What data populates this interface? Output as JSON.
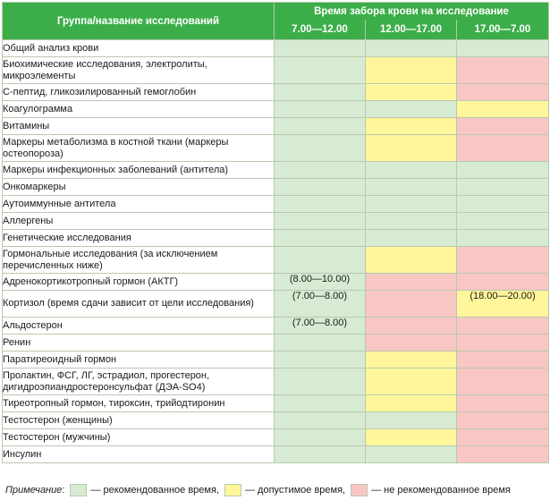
{
  "header": {
    "group_col": "Группа/название исследований",
    "time_col": "Время забора крови на исследование",
    "slots": [
      "7.00—12.00",
      "12.00—17.00",
      "17.00—7.00"
    ]
  },
  "colors": {
    "recommended": "#d7ebd2",
    "acceptable": "#fff59b",
    "not_recommended": "#f8c7c3",
    "header": "#3cae49"
  },
  "rows": [
    {
      "name": "Общий анализ крови",
      "cells": [
        {
          "c": "g",
          "t": ""
        },
        {
          "c": "g",
          "t": ""
        },
        {
          "c": "g",
          "t": ""
        }
      ]
    },
    {
      "name": "Биохимические исследования, электролиты, микроэлементы",
      "cells": [
        {
          "c": "g",
          "t": ""
        },
        {
          "c": "y",
          "t": ""
        },
        {
          "c": "p",
          "t": ""
        }
      ]
    },
    {
      "name": "С-пептид, гликозилированный гемоглобин",
      "cells": [
        {
          "c": "g",
          "t": ""
        },
        {
          "c": "y",
          "t": ""
        },
        {
          "c": "p",
          "t": ""
        }
      ]
    },
    {
      "name": "Коагулограмма",
      "cells": [
        {
          "c": "g",
          "t": ""
        },
        {
          "c": "g",
          "t": ""
        },
        {
          "c": "y",
          "t": ""
        }
      ]
    },
    {
      "name": "Витамины",
      "cells": [
        {
          "c": "g",
          "t": ""
        },
        {
          "c": "y",
          "t": ""
        },
        {
          "c": "p",
          "t": ""
        }
      ]
    },
    {
      "name": "Маркеры метаболизма в костной ткани (маркеры остеопороза)",
      "cells": [
        {
          "c": "g",
          "t": ""
        },
        {
          "c": "y",
          "t": ""
        },
        {
          "c": "p",
          "t": ""
        }
      ]
    },
    {
      "name": "Маркеры инфекционных заболеваний (антитела)",
      "cells": [
        {
          "c": "g",
          "t": ""
        },
        {
          "c": "g",
          "t": ""
        },
        {
          "c": "g",
          "t": ""
        }
      ]
    },
    {
      "name": "Онкомаркеры",
      "cells": [
        {
          "c": "g",
          "t": ""
        },
        {
          "c": "g",
          "t": ""
        },
        {
          "c": "g",
          "t": ""
        }
      ]
    },
    {
      "name": "Аутоиммунные антитела",
      "cells": [
        {
          "c": "g",
          "t": ""
        },
        {
          "c": "g",
          "t": ""
        },
        {
          "c": "g",
          "t": ""
        }
      ]
    },
    {
      "name": "Аллергены",
      "cells": [
        {
          "c": "g",
          "t": ""
        },
        {
          "c": "g",
          "t": ""
        },
        {
          "c": "g",
          "t": ""
        }
      ]
    },
    {
      "name": "Генетические исследования",
      "cells": [
        {
          "c": "g",
          "t": ""
        },
        {
          "c": "g",
          "t": ""
        },
        {
          "c": "g",
          "t": ""
        }
      ]
    },
    {
      "name": "Гормональные исследования (за исключением перечисленных ниже)",
      "cells": [
        {
          "c": "g",
          "t": ""
        },
        {
          "c": "y",
          "t": ""
        },
        {
          "c": "p",
          "t": ""
        }
      ]
    },
    {
      "name": "Адренокортикотропный гормон (АКТГ)",
      "cells": [
        {
          "c": "g",
          "t": "(8.00—10.00)"
        },
        {
          "c": "p",
          "t": ""
        },
        {
          "c": "p",
          "t": ""
        }
      ]
    },
    {
      "name": "Кортизол (время сдачи зависит от цели исследования)",
      "cells": [
        {
          "c": "g",
          "t": "(7.00—8.00)"
        },
        {
          "c": "p",
          "t": ""
        },
        {
          "c": "y",
          "t": "(18.00—20.00)"
        }
      ]
    },
    {
      "name": "Альдостерон",
      "cells": [
        {
          "c": "g",
          "t": "(7.00—8.00)"
        },
        {
          "c": "p",
          "t": ""
        },
        {
          "c": "p",
          "t": ""
        }
      ]
    },
    {
      "name": "Ренин",
      "cells": [
        {
          "c": "g",
          "t": ""
        },
        {
          "c": "p",
          "t": ""
        },
        {
          "c": "p",
          "t": ""
        }
      ]
    },
    {
      "name": "Паратиреоидный гормон",
      "cells": [
        {
          "c": "g",
          "t": ""
        },
        {
          "c": "y",
          "t": ""
        },
        {
          "c": "p",
          "t": ""
        }
      ]
    },
    {
      "name": "Пролактин, ФСГ, ЛГ, эстрадиол, прогестерон, дигидроэпиандростеронсульфат (ДЭА-SO4)",
      "cells": [
        {
          "c": "g",
          "t": ""
        },
        {
          "c": "y",
          "t": ""
        },
        {
          "c": "p",
          "t": ""
        }
      ]
    },
    {
      "name": "Тиреотропный гормон, тироксин, трийодтиронин",
      "cells": [
        {
          "c": "g",
          "t": ""
        },
        {
          "c": "y",
          "t": ""
        },
        {
          "c": "p",
          "t": ""
        }
      ]
    },
    {
      "name": "Тестостерон (женщины)",
      "cells": [
        {
          "c": "g",
          "t": ""
        },
        {
          "c": "g",
          "t": ""
        },
        {
          "c": "p",
          "t": ""
        }
      ]
    },
    {
      "name": "Тестостерон (мужчины)",
      "cells": [
        {
          "c": "g",
          "t": ""
        },
        {
          "c": "y",
          "t": ""
        },
        {
          "c": "p",
          "t": ""
        }
      ]
    },
    {
      "name": "Инсулин",
      "cells": [
        {
          "c": "g",
          "t": ""
        },
        {
          "c": "g",
          "t": ""
        },
        {
          "c": "p",
          "t": ""
        }
      ]
    }
  ],
  "note": {
    "label": "Примечание",
    "recommended": "— рекомендованное время,",
    "acceptable": "— допустимое время,",
    "not_recommended": "— не рекомендованное время"
  }
}
